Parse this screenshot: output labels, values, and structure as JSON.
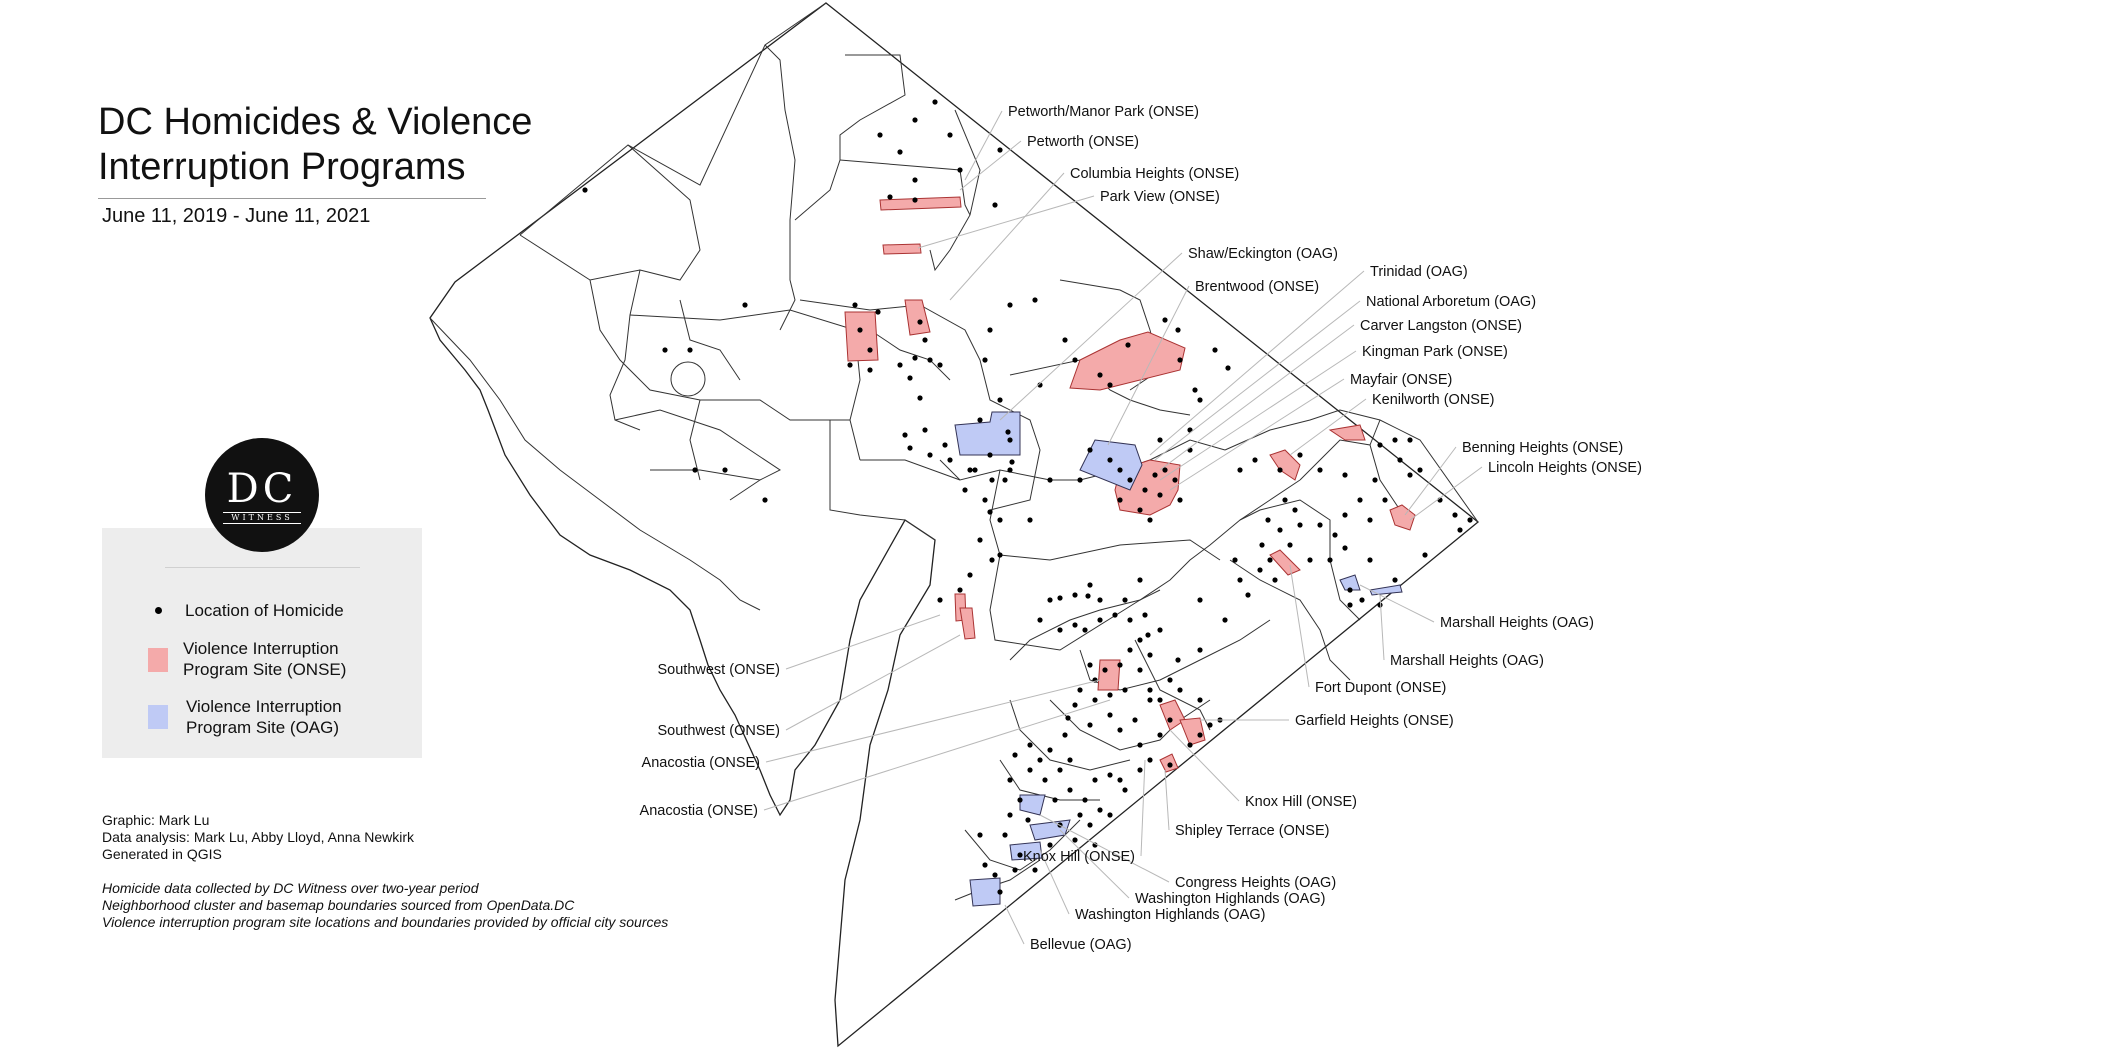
{
  "title_line1": "DC Homicides & Violence",
  "title_line2": "Interruption Programs",
  "date_range": "June 11, 2019 - June 11, 2021",
  "logo": {
    "main": "DC",
    "sub": "WITNESS"
  },
  "legend": {
    "homicide": "Location of Homicide",
    "onse_line1": "Violence Interruption",
    "onse_line2": "Program Site (ONSE)",
    "oag_line1": "Violence Interruption",
    "oag_line2": "Program Site (OAG)"
  },
  "colors": {
    "onse": "#f4aaaa",
    "oag": "#bfcaf5",
    "boundary": "#222222",
    "leader": "#b8b8b8"
  },
  "credits": [
    "Graphic: Mark Lu",
    "Data analysis: Mark Lu, Abby Lloyd, Anna Newkirk",
    "Generated in QGIS"
  ],
  "notes": [
    "Homicide data collected by DC Witness over two-year period",
    "Neighborhood cluster and basemap boundaries sourced from OpenData.DC",
    "Violence interruption program site locations and boundaries provided by official city sources"
  ],
  "site_labels": [
    "Petworth/Manor Park (ONSE)",
    "Petworth (ONSE)",
    "Columbia Heights (ONSE)",
    "Park View (ONSE)",
    "Shaw/Eckington (OAG)",
    "Brentwood (ONSE)",
    "Trinidad (OAG)",
    "National Arboretum (OAG)",
    "Carver Langston (ONSE)",
    "Kingman Park (ONSE)",
    "Mayfair (ONSE)",
    "Kenilworth (ONSE)",
    "Benning Heights (ONSE)",
    "Lincoln Heights (ONSE)",
    "Marshall Heights (OAG)",
    "Marshall Heights (OAG)",
    "Fort Dupont (ONSE)",
    "Garfield Heights (ONSE)",
    "Knox Hill (ONSE)",
    "Shipley Terrace (ONSE)",
    "Knox Hill (ONSE)",
    "Congress Heights (OAG)",
    "Washington Highlands (OAG)",
    "Washington Highlands (OAG)",
    "Bellevue (OAG)",
    "Southwest (ONSE)",
    "Southwest (ONSE)",
    "Anacostia (ONSE)",
    "Anacostia (ONSE)"
  ]
}
